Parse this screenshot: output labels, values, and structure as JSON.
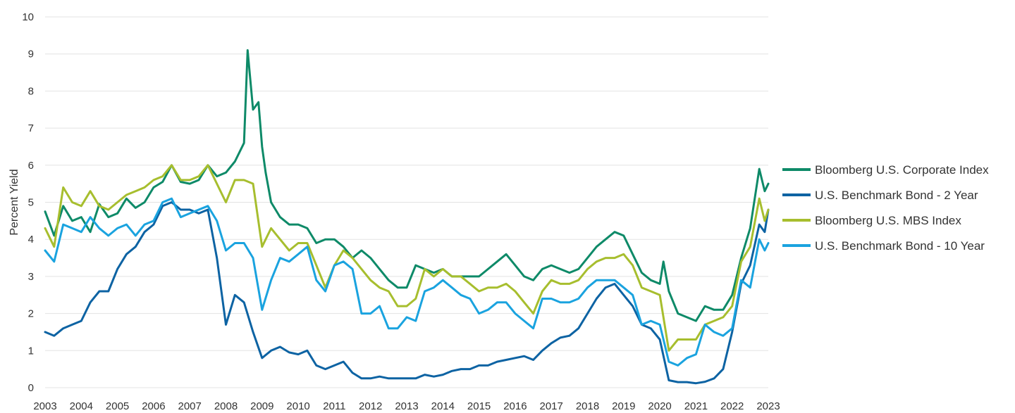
{
  "chart_data": {
    "type": "line",
    "title": "",
    "xlabel": "",
    "ylabel": "Percent Yield",
    "xlim": [
      2003,
      2023
    ],
    "ylim": [
      0,
      10
    ],
    "x_ticks": [
      "2003",
      "2004",
      "2005",
      "2006",
      "2007",
      "2008",
      "2009",
      "2010",
      "2011",
      "2012",
      "2013",
      "2014",
      "2015",
      "2016",
      "2017",
      "2018",
      "2019",
      "2020",
      "2021",
      "2022",
      "2023"
    ],
    "y_ticks": [
      "0",
      "1",
      "2",
      "3",
      "4",
      "5",
      "6",
      "7",
      "8",
      "9",
      "10"
    ],
    "grid": true,
    "legend_position": "right",
    "series": [
      {
        "name": "Bloomberg U.S. Corporate Index",
        "color": "#0e8a68",
        "x": [
          2003.0,
          2003.25,
          2003.5,
          2003.75,
          2004.0,
          2004.25,
          2004.5,
          2004.75,
          2005.0,
          2005.25,
          2005.5,
          2005.75,
          2006.0,
          2006.25,
          2006.5,
          2006.75,
          2007.0,
          2007.25,
          2007.5,
          2007.75,
          2008.0,
          2008.25,
          2008.5,
          2008.6,
          2008.75,
          2008.9,
          2009.0,
          2009.1,
          2009.25,
          2009.5,
          2009.75,
          2010.0,
          2010.25,
          2010.5,
          2010.75,
          2011.0,
          2011.25,
          2011.5,
          2011.75,
          2012.0,
          2012.25,
          2012.5,
          2012.75,
          2013.0,
          2013.25,
          2013.5,
          2013.75,
          2014.0,
          2014.25,
          2014.5,
          2014.75,
          2015.0,
          2015.25,
          2015.5,
          2015.75,
          2016.0,
          2016.25,
          2016.5,
          2016.75,
          2017.0,
          2017.25,
          2017.5,
          2017.75,
          2018.0,
          2018.25,
          2018.5,
          2018.75,
          2019.0,
          2019.25,
          2019.5,
          2019.75,
          2020.0,
          2020.1,
          2020.25,
          2020.5,
          2020.75,
          2021.0,
          2021.25,
          2021.5,
          2021.75,
          2022.0,
          2022.25,
          2022.5,
          2022.75,
          2022.9,
          2023.0
        ],
        "y": [
          4.75,
          4.1,
          4.9,
          4.5,
          4.6,
          4.2,
          4.95,
          4.6,
          4.7,
          5.1,
          4.85,
          5.0,
          5.4,
          5.55,
          6.0,
          5.55,
          5.5,
          5.6,
          6.0,
          5.7,
          5.8,
          6.1,
          6.6,
          9.1,
          7.5,
          7.7,
          6.5,
          5.8,
          5.0,
          4.6,
          4.4,
          4.4,
          4.3,
          3.9,
          4.0,
          4.0,
          3.8,
          3.5,
          3.7,
          3.5,
          3.2,
          2.9,
          2.7,
          2.7,
          3.3,
          3.2,
          3.1,
          3.2,
          3.0,
          3.0,
          3.0,
          3.0,
          3.2,
          3.4,
          3.6,
          3.3,
          3.0,
          2.9,
          3.2,
          3.3,
          3.2,
          3.1,
          3.2,
          3.5,
          3.8,
          4.0,
          4.2,
          4.1,
          3.6,
          3.1,
          2.9,
          2.8,
          3.4,
          2.6,
          2.0,
          1.9,
          1.8,
          2.2,
          2.1,
          2.1,
          2.5,
          3.5,
          4.3,
          5.9,
          5.3,
          5.5
        ]
      },
      {
        "name": "U.S. Benchmark Bond - 2 Year",
        "color": "#0d63a3",
        "x": [
          2003.0,
          2003.25,
          2003.5,
          2003.75,
          2004.0,
          2004.25,
          2004.5,
          2004.75,
          2005.0,
          2005.25,
          2005.5,
          2005.75,
          2006.0,
          2006.25,
          2006.5,
          2006.75,
          2007.0,
          2007.25,
          2007.5,
          2007.75,
          2008.0,
          2008.25,
          2008.5,
          2008.75,
          2009.0,
          2009.25,
          2009.5,
          2009.75,
          2010.0,
          2010.25,
          2010.5,
          2010.75,
          2011.0,
          2011.25,
          2011.5,
          2011.75,
          2012.0,
          2012.25,
          2012.5,
          2012.75,
          2013.0,
          2013.25,
          2013.5,
          2013.75,
          2014.0,
          2014.25,
          2014.5,
          2014.75,
          2015.0,
          2015.25,
          2015.5,
          2015.75,
          2016.0,
          2016.25,
          2016.5,
          2016.75,
          2017.0,
          2017.25,
          2017.5,
          2017.75,
          2018.0,
          2018.25,
          2018.5,
          2018.75,
          2019.0,
          2019.25,
          2019.5,
          2019.75,
          2020.0,
          2020.25,
          2020.5,
          2020.75,
          2021.0,
          2021.25,
          2021.5,
          2021.75,
          2022.0,
          2022.25,
          2022.5,
          2022.75,
          2022.9,
          2023.0
        ],
        "y": [
          1.5,
          1.4,
          1.6,
          1.7,
          1.8,
          2.3,
          2.6,
          2.6,
          3.2,
          3.6,
          3.8,
          4.2,
          4.4,
          4.9,
          5.0,
          4.8,
          4.8,
          4.7,
          4.8,
          3.5,
          1.7,
          2.5,
          2.3,
          1.5,
          0.8,
          1.0,
          1.1,
          0.95,
          0.9,
          1.0,
          0.6,
          0.5,
          0.6,
          0.7,
          0.4,
          0.25,
          0.25,
          0.3,
          0.25,
          0.25,
          0.25,
          0.25,
          0.35,
          0.3,
          0.35,
          0.45,
          0.5,
          0.5,
          0.6,
          0.6,
          0.7,
          0.75,
          0.8,
          0.85,
          0.75,
          1.0,
          1.2,
          1.35,
          1.4,
          1.6,
          2.0,
          2.4,
          2.7,
          2.8,
          2.5,
          2.2,
          1.7,
          1.6,
          1.3,
          0.2,
          0.15,
          0.15,
          0.12,
          0.16,
          0.25,
          0.5,
          1.5,
          2.8,
          3.3,
          4.4,
          4.2,
          4.8
        ]
      },
      {
        "name": "Bloomberg U.S. MBS Index",
        "color": "#a7be2e",
        "x": [
          2003.0,
          2003.25,
          2003.5,
          2003.75,
          2004.0,
          2004.25,
          2004.5,
          2004.75,
          2005.0,
          2005.25,
          2005.5,
          2005.75,
          2006.0,
          2006.25,
          2006.5,
          2006.75,
          2007.0,
          2007.25,
          2007.5,
          2007.75,
          2008.0,
          2008.25,
          2008.5,
          2008.75,
          2009.0,
          2009.25,
          2009.5,
          2009.75,
          2010.0,
          2010.25,
          2010.5,
          2010.75,
          2011.0,
          2011.25,
          2011.5,
          2011.75,
          2012.0,
          2012.25,
          2012.5,
          2012.75,
          2013.0,
          2013.25,
          2013.5,
          2013.75,
          2014.0,
          2014.25,
          2014.5,
          2014.75,
          2015.0,
          2015.25,
          2015.5,
          2015.75,
          2016.0,
          2016.25,
          2016.5,
          2016.75,
          2017.0,
          2017.25,
          2017.5,
          2017.75,
          2018.0,
          2018.25,
          2018.5,
          2018.75,
          2019.0,
          2019.25,
          2019.5,
          2019.75,
          2020.0,
          2020.25,
          2020.5,
          2020.75,
          2021.0,
          2021.25,
          2021.5,
          2021.75,
          2022.0,
          2022.25,
          2022.5,
          2022.75,
          2022.9,
          2023.0
        ],
        "y": [
          4.3,
          3.8,
          5.4,
          5.0,
          4.9,
          5.3,
          4.9,
          4.8,
          5.0,
          5.2,
          5.3,
          5.4,
          5.6,
          5.7,
          6.0,
          5.6,
          5.6,
          5.7,
          6.0,
          5.5,
          5.0,
          5.6,
          5.6,
          5.5,
          3.8,
          4.3,
          4.0,
          3.7,
          3.9,
          3.9,
          3.3,
          2.7,
          3.3,
          3.7,
          3.5,
          3.2,
          2.9,
          2.7,
          2.6,
          2.2,
          2.2,
          2.4,
          3.2,
          3.0,
          3.2,
          3.0,
          3.0,
          2.8,
          2.6,
          2.7,
          2.7,
          2.8,
          2.6,
          2.3,
          2.0,
          2.6,
          2.9,
          2.8,
          2.8,
          2.9,
          3.2,
          3.4,
          3.5,
          3.5,
          3.6,
          3.3,
          2.7,
          2.6,
          2.5,
          1.0,
          1.3,
          1.3,
          1.3,
          1.7,
          1.8,
          1.9,
          2.2,
          3.4,
          3.8,
          5.1,
          4.5,
          4.8
        ]
      },
      {
        "name": "U.S. Benchmark Bond - 10 Year",
        "color": "#1aa3df",
        "x": [
          2003.0,
          2003.25,
          2003.5,
          2003.75,
          2004.0,
          2004.25,
          2004.5,
          2004.75,
          2005.0,
          2005.25,
          2005.5,
          2005.75,
          2006.0,
          2006.25,
          2006.5,
          2006.75,
          2007.0,
          2007.25,
          2007.5,
          2007.75,
          2008.0,
          2008.25,
          2008.5,
          2008.75,
          2009.0,
          2009.25,
          2009.5,
          2009.75,
          2010.0,
          2010.25,
          2010.5,
          2010.75,
          2011.0,
          2011.25,
          2011.5,
          2011.75,
          2012.0,
          2012.25,
          2012.5,
          2012.75,
          2013.0,
          2013.25,
          2013.5,
          2013.75,
          2014.0,
          2014.25,
          2014.5,
          2014.75,
          2015.0,
          2015.25,
          2015.5,
          2015.75,
          2016.0,
          2016.25,
          2016.5,
          2016.75,
          2017.0,
          2017.25,
          2017.5,
          2017.75,
          2018.0,
          2018.25,
          2018.5,
          2018.75,
          2019.0,
          2019.25,
          2019.5,
          2019.75,
          2020.0,
          2020.25,
          2020.5,
          2020.75,
          2021.0,
          2021.25,
          2021.5,
          2021.75,
          2022.0,
          2022.25,
          2022.5,
          2022.75,
          2022.9,
          2023.0
        ],
        "y": [
          3.7,
          3.4,
          4.4,
          4.3,
          4.2,
          4.6,
          4.3,
          4.1,
          4.3,
          4.4,
          4.1,
          4.4,
          4.5,
          5.0,
          5.1,
          4.6,
          4.7,
          4.8,
          4.9,
          4.5,
          3.7,
          3.9,
          3.9,
          3.5,
          2.1,
          2.9,
          3.5,
          3.4,
          3.6,
          3.8,
          2.9,
          2.6,
          3.3,
          3.4,
          3.2,
          2.0,
          2.0,
          2.2,
          1.6,
          1.6,
          1.9,
          1.8,
          2.6,
          2.7,
          2.9,
          2.7,
          2.5,
          2.4,
          2.0,
          2.1,
          2.3,
          2.3,
          2.0,
          1.8,
          1.6,
          2.4,
          2.4,
          2.3,
          2.3,
          2.4,
          2.7,
          2.9,
          2.9,
          2.9,
          2.7,
          2.5,
          1.7,
          1.8,
          1.7,
          0.7,
          0.6,
          0.8,
          0.9,
          1.7,
          1.5,
          1.4,
          1.6,
          2.9,
          2.7,
          4.0,
          3.7,
          3.9
        ]
      }
    ]
  }
}
